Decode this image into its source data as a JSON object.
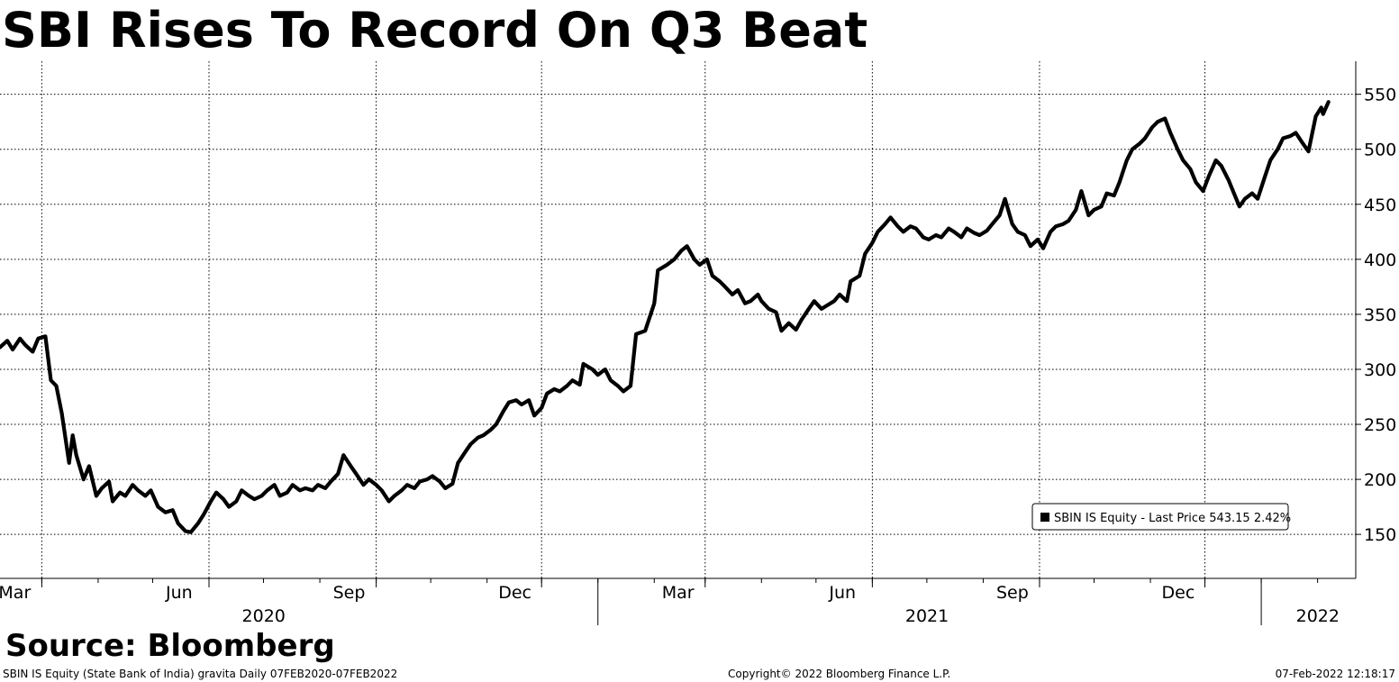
{
  "title": "SBI Rises To Record On Q3 Beat",
  "source": "Source: Bloomberg",
  "footer": {
    "left": "SBIN IS Equity (State Bank of India) gravita  Daily 07FEB2020-07FEB2022",
    "center": "Copyright© 2022 Bloomberg Finance L.P.",
    "right": "07-Feb-2022 12:18:17"
  },
  "legend": {
    "label": "SBIN IS Equity - Last Price 543.15  2.42%"
  },
  "colors": {
    "line": "#000000",
    "grid": "#000000",
    "background": "#ffffff"
  },
  "chart_data": {
    "type": "line",
    "title": "SBI Rises To Record On Q3 Beat",
    "xlabel": "",
    "ylabel": "",
    "y_axis_position": "right",
    "ylim": [
      110,
      580
    ],
    "xlim": [
      "2020-02-07",
      "2022-02-22"
    ],
    "y_ticks": [
      150,
      200,
      250,
      300,
      350,
      400,
      450,
      500,
      550
    ],
    "month_ticks": [
      {
        "date": "2020-03-01",
        "label": "Mar"
      },
      {
        "date": "2020-06-01",
        "label": "Jun"
      },
      {
        "date": "2020-09-01",
        "label": "Sep"
      },
      {
        "date": "2020-12-01",
        "label": "Dec"
      },
      {
        "date": "2021-03-01",
        "label": "Mar"
      },
      {
        "date": "2021-06-01",
        "label": "Jun"
      },
      {
        "date": "2021-09-01",
        "label": "Sep"
      },
      {
        "date": "2021-12-01",
        "label": "Dec"
      }
    ],
    "year_labels": [
      {
        "date": "2020-07-01",
        "label": "2020"
      },
      {
        "date": "2021-07-01",
        "label": "2021"
      },
      {
        "date": "2022-02-01",
        "label": "2022"
      }
    ],
    "year_boundaries": [
      "2021-01-01",
      "2022-01-01"
    ],
    "grid": true,
    "legend_position": "bottom-right",
    "series": [
      {
        "name": "SBIN IS Equity - Last Price",
        "last_value": 543.15,
        "change_pct": 2.42,
        "points": [
          [
            "2020-02-07",
            320
          ],
          [
            "2020-02-11",
            326
          ],
          [
            "2020-02-14",
            318
          ],
          [
            "2020-02-18",
            328
          ],
          [
            "2020-02-21",
            322
          ],
          [
            "2020-02-25",
            316
          ],
          [
            "2020-02-28",
            328
          ],
          [
            "2020-03-03",
            330
          ],
          [
            "2020-03-06",
            290
          ],
          [
            "2020-03-09",
            285
          ],
          [
            "2020-03-12",
            260
          ],
          [
            "2020-03-16",
            215
          ],
          [
            "2020-03-18",
            240
          ],
          [
            "2020-03-20",
            222
          ],
          [
            "2020-03-24",
            200
          ],
          [
            "2020-03-27",
            212
          ],
          [
            "2020-03-31",
            185
          ],
          [
            "2020-04-03",
            192
          ],
          [
            "2020-04-07",
            198
          ],
          [
            "2020-04-09",
            180
          ],
          [
            "2020-04-13",
            188
          ],
          [
            "2020-04-16",
            185
          ],
          [
            "2020-04-20",
            195
          ],
          [
            "2020-04-23",
            190
          ],
          [
            "2020-04-27",
            185
          ],
          [
            "2020-04-30",
            190
          ],
          [
            "2020-05-04",
            175
          ],
          [
            "2020-05-08",
            170
          ],
          [
            "2020-05-12",
            172
          ],
          [
            "2020-05-15",
            160
          ],
          [
            "2020-05-19",
            153
          ],
          [
            "2020-05-22",
            152
          ],
          [
            "2020-05-26",
            160
          ],
          [
            "2020-05-29",
            168
          ],
          [
            "2020-06-02",
            180
          ],
          [
            "2020-06-05",
            188
          ],
          [
            "2020-06-09",
            182
          ],
          [
            "2020-06-12",
            175
          ],
          [
            "2020-06-16",
            180
          ],
          [
            "2020-06-19",
            190
          ],
          [
            "2020-06-23",
            185
          ],
          [
            "2020-06-26",
            182
          ],
          [
            "2020-06-30",
            185
          ],
          [
            "2020-07-03",
            190
          ],
          [
            "2020-07-07",
            195
          ],
          [
            "2020-07-10",
            185
          ],
          [
            "2020-07-14",
            188
          ],
          [
            "2020-07-17",
            195
          ],
          [
            "2020-07-21",
            190
          ],
          [
            "2020-07-24",
            192
          ],
          [
            "2020-07-28",
            190
          ],
          [
            "2020-07-31",
            195
          ],
          [
            "2020-08-04",
            192
          ],
          [
            "2020-08-07",
            198
          ],
          [
            "2020-08-11",
            205
          ],
          [
            "2020-08-14",
            222
          ],
          [
            "2020-08-18",
            212
          ],
          [
            "2020-08-21",
            205
          ],
          [
            "2020-08-25",
            195
          ],
          [
            "2020-08-28",
            200
          ],
          [
            "2020-09-01",
            195
          ],
          [
            "2020-09-04",
            190
          ],
          [
            "2020-09-08",
            180
          ],
          [
            "2020-09-11",
            185
          ],
          [
            "2020-09-15",
            190
          ],
          [
            "2020-09-18",
            195
          ],
          [
            "2020-09-22",
            192
          ],
          [
            "2020-09-25",
            198
          ],
          [
            "2020-09-29",
            200
          ],
          [
            "2020-10-02",
            203
          ],
          [
            "2020-10-06",
            198
          ],
          [
            "2020-10-09",
            192
          ],
          [
            "2020-10-13",
            196
          ],
          [
            "2020-10-16",
            215
          ],
          [
            "2020-10-20",
            225
          ],
          [
            "2020-10-23",
            232
          ],
          [
            "2020-10-27",
            238
          ],
          [
            "2020-10-30",
            240
          ],
          [
            "2020-11-03",
            245
          ],
          [
            "2020-11-06",
            250
          ],
          [
            "2020-11-10",
            262
          ],
          [
            "2020-11-13",
            270
          ],
          [
            "2020-11-17",
            272
          ],
          [
            "2020-11-20",
            268
          ],
          [
            "2020-11-24",
            272
          ],
          [
            "2020-11-27",
            258
          ],
          [
            "2020-12-01",
            265
          ],
          [
            "2020-12-04",
            278
          ],
          [
            "2020-12-08",
            282
          ],
          [
            "2020-12-11",
            280
          ],
          [
            "2020-12-15",
            285
          ],
          [
            "2020-12-18",
            290
          ],
          [
            "2020-12-22",
            286
          ],
          [
            "2020-12-24",
            305
          ],
          [
            "2020-12-29",
            300
          ],
          [
            "2021-01-01",
            295
          ],
          [
            "2021-01-05",
            300
          ],
          [
            "2021-01-08",
            290
          ],
          [
            "2021-01-12",
            285
          ],
          [
            "2021-01-15",
            280
          ],
          [
            "2021-01-19",
            285
          ],
          [
            "2021-01-22",
            332
          ],
          [
            "2021-01-27",
            335
          ],
          [
            "2021-02-01",
            360
          ],
          [
            "2021-02-03",
            390
          ],
          [
            "2021-02-08",
            395
          ],
          [
            "2021-02-12",
            400
          ],
          [
            "2021-02-16",
            408
          ],
          [
            "2021-02-19",
            412
          ],
          [
            "2021-02-23",
            400
          ],
          [
            "2021-02-26",
            395
          ],
          [
            "2021-03-02",
            400
          ],
          [
            "2021-03-05",
            385
          ],
          [
            "2021-03-09",
            380
          ],
          [
            "2021-03-12",
            375
          ],
          [
            "2021-03-16",
            368
          ],
          [
            "2021-03-19",
            372
          ],
          [
            "2021-03-23",
            360
          ],
          [
            "2021-03-26",
            362
          ],
          [
            "2021-03-30",
            368
          ],
          [
            "2021-04-01",
            362
          ],
          [
            "2021-04-05",
            355
          ],
          [
            "2021-04-09",
            352
          ],
          [
            "2021-04-12",
            335
          ],
          [
            "2021-04-16",
            342
          ],
          [
            "2021-04-20",
            336
          ],
          [
            "2021-04-23",
            345
          ],
          [
            "2021-04-27",
            355
          ],
          [
            "2021-04-30",
            362
          ],
          [
            "2021-05-04",
            355
          ],
          [
            "2021-05-07",
            358
          ],
          [
            "2021-05-11",
            362
          ],
          [
            "2021-05-14",
            368
          ],
          [
            "2021-05-18",
            362
          ],
          [
            "2021-05-20",
            380
          ],
          [
            "2021-05-25",
            385
          ],
          [
            "2021-05-28",
            405
          ],
          [
            "2021-06-01",
            415
          ],
          [
            "2021-06-04",
            425
          ],
          [
            "2021-06-08",
            432
          ],
          [
            "2021-06-11",
            438
          ],
          [
            "2021-06-15",
            430
          ],
          [
            "2021-06-18",
            425
          ],
          [
            "2021-06-22",
            430
          ],
          [
            "2021-06-25",
            428
          ],
          [
            "2021-06-29",
            420
          ],
          [
            "2021-07-02",
            418
          ],
          [
            "2021-07-06",
            422
          ],
          [
            "2021-07-09",
            420
          ],
          [
            "2021-07-13",
            428
          ],
          [
            "2021-07-16",
            425
          ],
          [
            "2021-07-20",
            420
          ],
          [
            "2021-07-23",
            428
          ],
          [
            "2021-07-27",
            424
          ],
          [
            "2021-07-30",
            422
          ],
          [
            "2021-08-03",
            426
          ],
          [
            "2021-08-06",
            432
          ],
          [
            "2021-08-10",
            440
          ],
          [
            "2021-08-13",
            455
          ],
          [
            "2021-08-17",
            432
          ],
          [
            "2021-08-20",
            425
          ],
          [
            "2021-08-24",
            422
          ],
          [
            "2021-08-27",
            412
          ],
          [
            "2021-08-31",
            418
          ],
          [
            "2021-09-03",
            410
          ],
          [
            "2021-09-07",
            425
          ],
          [
            "2021-09-10",
            430
          ],
          [
            "2021-09-14",
            432
          ],
          [
            "2021-09-17",
            435
          ],
          [
            "2021-09-21",
            445
          ],
          [
            "2021-09-24",
            462
          ],
          [
            "2021-09-28",
            440
          ],
          [
            "2021-10-01",
            445
          ],
          [
            "2021-10-05",
            448
          ],
          [
            "2021-10-08",
            460
          ],
          [
            "2021-10-12",
            458
          ],
          [
            "2021-10-15",
            470
          ],
          [
            "2021-10-19",
            490
          ],
          [
            "2021-10-22",
            500
          ],
          [
            "2021-10-26",
            505
          ],
          [
            "2021-10-29",
            510
          ],
          [
            "2021-11-02",
            520
          ],
          [
            "2021-11-05",
            525
          ],
          [
            "2021-11-09",
            528
          ],
          [
            "2021-11-12",
            515
          ],
          [
            "2021-11-16",
            500
          ],
          [
            "2021-11-19",
            490
          ],
          [
            "2021-11-23",
            482
          ],
          [
            "2021-11-26",
            470
          ],
          [
            "2021-11-30",
            462
          ],
          [
            "2021-12-03",
            475
          ],
          [
            "2021-12-07",
            490
          ],
          [
            "2021-12-10",
            485
          ],
          [
            "2021-12-14",
            472
          ],
          [
            "2021-12-17",
            460
          ],
          [
            "2021-12-20",
            448
          ],
          [
            "2021-12-23",
            455
          ],
          [
            "2021-12-27",
            460
          ],
          [
            "2021-12-30",
            455
          ],
          [
            "2022-01-03",
            475
          ],
          [
            "2022-01-06",
            490
          ],
          [
            "2022-01-10",
            500
          ],
          [
            "2022-01-13",
            510
          ],
          [
            "2022-01-17",
            512
          ],
          [
            "2022-01-20",
            515
          ],
          [
            "2022-01-24",
            505
          ],
          [
            "2022-01-27",
            498
          ],
          [
            "2022-01-31",
            530
          ],
          [
            "2022-02-03",
            538
          ],
          [
            "2022-02-04",
            532
          ],
          [
            "2022-02-07",
            543
          ]
        ]
      }
    ]
  }
}
